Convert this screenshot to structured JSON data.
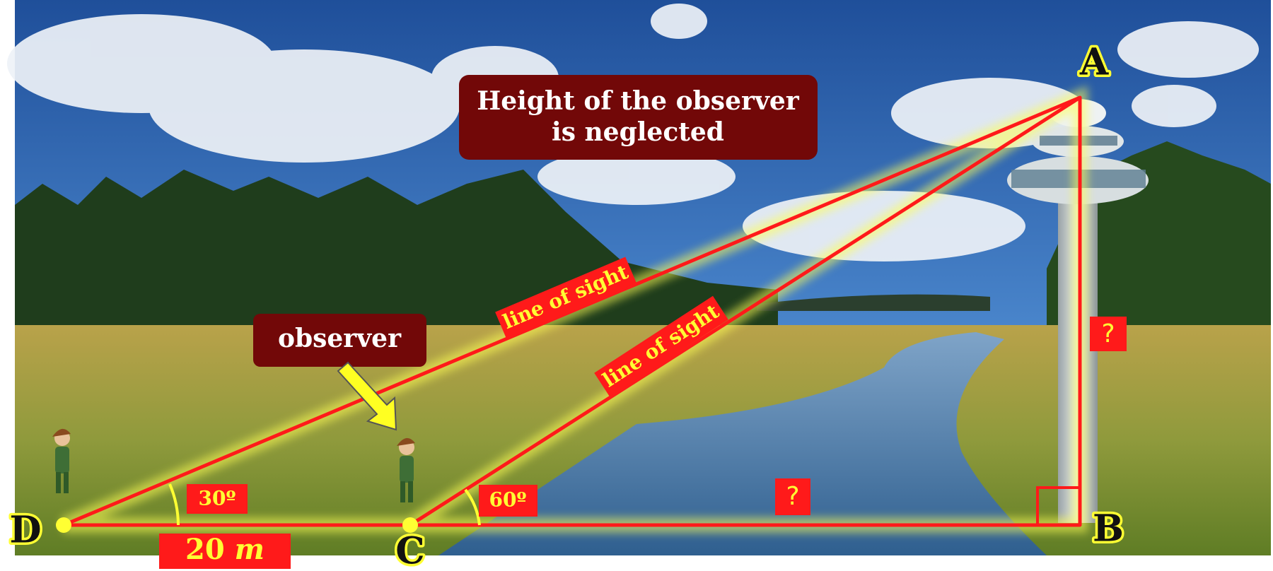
{
  "note": {
    "lines": [
      "Height of the observer",
      "is neglected"
    ]
  },
  "observer_label": "observer",
  "line_of_sight": [
    "line of sight",
    "line of sight"
  ],
  "angles": [
    "30º",
    "60º"
  ],
  "distance": {
    "value": "20",
    "unit": "m"
  },
  "unknowns": [
    "?",
    "?"
  ],
  "points": {
    "A": "A",
    "B": "B",
    "C": "C",
    "D": "D"
  }
}
